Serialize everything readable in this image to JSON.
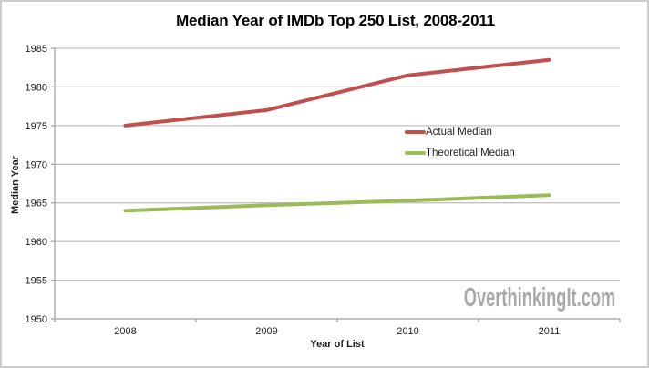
{
  "watermark": "OverthinkingIt.com",
  "colors": {
    "background": "#ffffff",
    "frame_border": "#cccccc",
    "gridline": "#c3c3c3",
    "axis": "#a6a6a6",
    "tick_text": "#1f1f1f",
    "title_text": "#000000",
    "watermark_text": "#a9a9a9",
    "actual_median_line": "#c0504d",
    "theoretical_median_line": "#9bbb59"
  },
  "chart_data": {
    "type": "line",
    "title": "Median Year of IMDb Top 250 List, 2008-2011",
    "xlabel": "Year of List",
    "ylabel": "Median Year",
    "categories": [
      "2008",
      "2009",
      "2010",
      "2011"
    ],
    "series": [
      {
        "name": "Actual Median",
        "color": "#c0504d",
        "values": [
          1975,
          1977,
          1981.5,
          1983.5
        ]
      },
      {
        "name": "Theoretical Median",
        "color": "#9bbb59",
        "values": [
          1964,
          1964.7,
          1965.3,
          1966
        ]
      }
    ],
    "ylim": [
      1950,
      1985
    ],
    "y_ticks": [
      1985,
      1980,
      1975,
      1970,
      1965,
      1960,
      1955,
      1950
    ],
    "grid": true,
    "legend_position": "inside-center-right"
  }
}
